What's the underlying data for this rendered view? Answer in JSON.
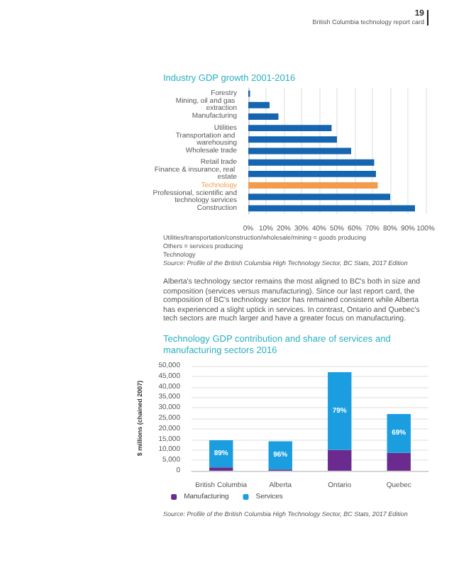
{
  "chart_data": [
    {
      "type": "bar",
      "orientation": "horizontal",
      "title": "Industry GDP growth 2001-2016",
      "categories": [
        "Forestry",
        "Mining, oil and gas extraction",
        "Manufacturing",
        "Utilities",
        "Transportation and warehousing",
        "Wholesale trade",
        "Retail trade",
        "Finance & insurance, real estate",
        "Technology",
        "Professional, scientific and technology services",
        "Construction"
      ],
      "values": [
        1,
        12,
        17,
        47,
        50,
        58,
        71,
        72,
        73,
        80,
        94
      ],
      "colors": [
        "#1565b0",
        "#1565b0",
        "#1565b0",
        "#1565b0",
        "#1565b0",
        "#1565b0",
        "#1565b0",
        "#1565b0",
        "#f39b4c",
        "#1565b0",
        "#1565b0"
      ],
      "xlim": [
        0,
        100
      ],
      "xticks": [
        {
          "value": 0,
          "label": "0%"
        },
        {
          "value": 10,
          "label": "10%"
        },
        {
          "value": 20,
          "label": "20%"
        },
        {
          "value": 30,
          "label": "30%"
        },
        {
          "value": 40,
          "label": "40%"
        },
        {
          "value": 50,
          "label": "50%"
        },
        {
          "value": 60,
          "label": "60%"
        },
        {
          "value": 70,
          "label": "70%"
        },
        {
          "value": 80,
          "label": "80%"
        },
        {
          "value": 90,
          "label": "90%"
        },
        {
          "value": 100,
          "label": "100%"
        }
      ],
      "grid": "x",
      "annotations": [
        "19",
        "British Columbia technology report card",
        "Utilities/transportation/construction/wholesale/mining = goods producing",
        "Others = services producing",
        "Technology",
        "Source: Profile of the British Columbia High Technology Sector, BC Stats, 2017 Edition",
        "Alberta's technology sector remains the most aligned to BC's both in size and composition (services versus manufacturing). Since our last report card, the composition of BC's technology sector has remained consistent while Alberta has experienced a slight uptick in services. In contrast, Ontario and Quebec's tech sectors are much larger and have a greater focus on manufacturing."
      ]
    },
    {
      "type": "bar",
      "stacked": true,
      "title": "Technology GDP contribution and share of services and manufacturing sectors 2016",
      "ylabel": "$ millions (chained 2007)",
      "categories": [
        "British Columbia",
        "Alberta",
        "Ontario",
        "Quebec"
      ],
      "series": [
        {
          "name": "Manufacturing",
          "color": "#6b2b8e",
          "values": [
            1600,
            600,
            10000,
            8500
          ]
        },
        {
          "name": "Services",
          "color": "#1a9ee0",
          "values": [
            12900,
            13400,
            37000,
            18500
          ]
        }
      ],
      "ylim": [
        0,
        50000
      ],
      "yticks": [
        0,
        {
          "value": 5000,
          "label": "5,000"
        },
        {
          "value": 10000,
          "label": "10,000"
        },
        {
          "value": 15000,
          "label": "15,000"
        },
        {
          "value": 20000,
          "label": "20,000"
        },
        {
          "value": 25000,
          "label": "25,000"
        },
        {
          "value": 30000,
          "label": "30,000"
        },
        {
          "value": 35000,
          "label": "35,000"
        },
        {
          "value": 40000,
          "label": "40,000"
        },
        {
          "value": 45000,
          "label": "45,000"
        },
        {
          "value": 50000,
          "label": "50,000"
        }
      ],
      "grid": "y",
      "legend": "bottom",
      "annotations": [
        "89%",
        "96%",
        "79%",
        "69%",
        "Source: Profile of the British Columbia High Technology Sector, BC Stats, 2017 Edition"
      ]
    }
  ]
}
